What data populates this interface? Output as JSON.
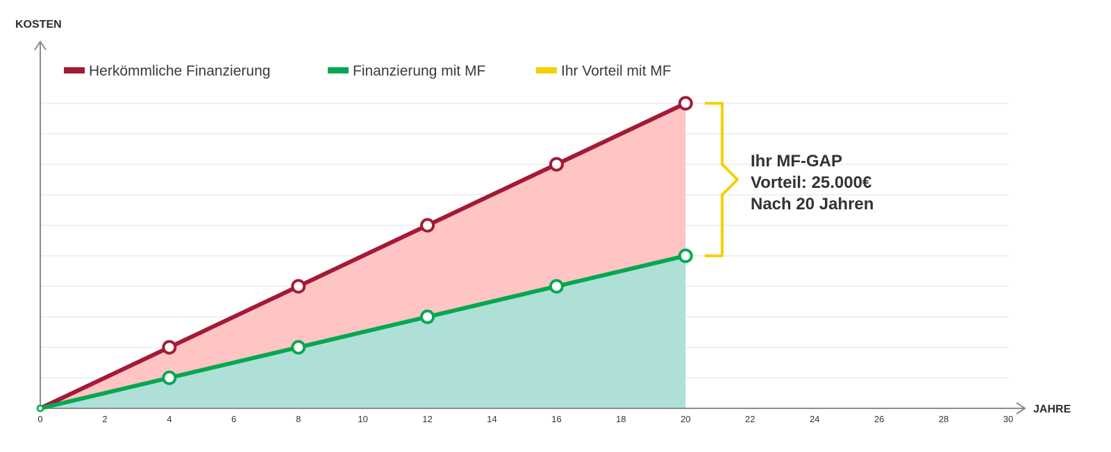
{
  "chart_data": {
    "type": "line",
    "ylabel": "KOSTEN",
    "xlabel": "JAHRE",
    "xlim": [
      0,
      30
    ],
    "ylim": [
      0,
      50000
    ],
    "x_ticks": [
      0,
      2,
      4,
      6,
      8,
      10,
      12,
      14,
      16,
      18,
      20,
      22,
      24,
      26,
      28,
      30
    ],
    "grid": true,
    "legend_position": "top-left",
    "series": [
      {
        "name": "Herkömmliche Finanzierung",
        "color": "#a31a36",
        "fill_color": "#ffc4c4",
        "x": [
          0,
          4,
          8,
          12,
          16,
          20
        ],
        "y": [
          0,
          10000,
          20000,
          30000,
          40000,
          50000
        ]
      },
      {
        "name": "Finanzierung mit MF",
        "color": "#05a850",
        "fill_color": "#aee0d8",
        "x": [
          0,
          4,
          8,
          12,
          16,
          20
        ],
        "y": [
          0,
          5000,
          10000,
          15000,
          20000,
          25000
        ]
      }
    ],
    "legend": [
      {
        "label": "Herkömmliche Finanzierung",
        "color": "#a31a36"
      },
      {
        "label": "Finanzierung mit MF",
        "color": "#05a850"
      },
      {
        "label": "Ihr Vorteil mit MF",
        "color": "#f6cf00"
      }
    ],
    "annotation": {
      "color": "#f6cf00",
      "lines": [
        "Ihr MF-GAP",
        "Vorteil: 25.000€",
        "Nach 20 Jahren"
      ],
      "x": 20,
      "y_from": 25000,
      "y_to": 50000
    }
  }
}
